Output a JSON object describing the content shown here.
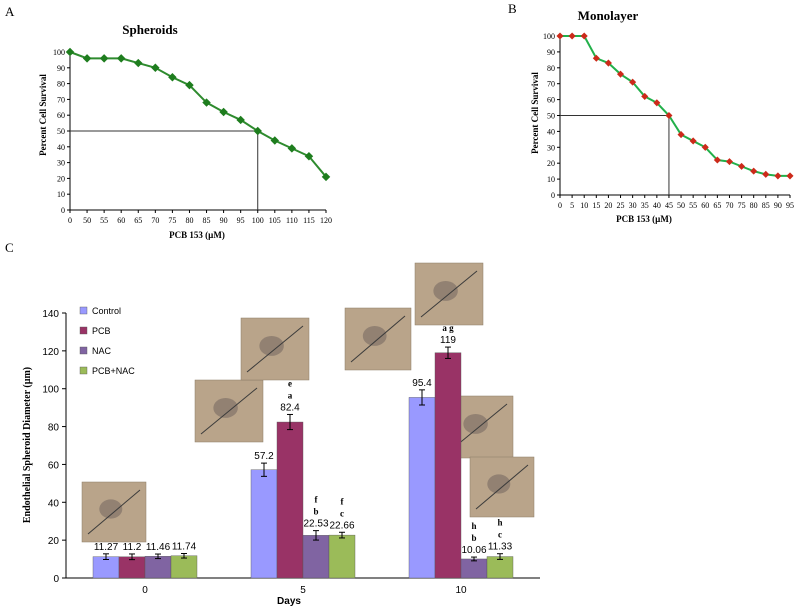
{
  "panels": {
    "a": {
      "label": "A"
    },
    "b": {
      "label": "B"
    },
    "c": {
      "label": "C"
    }
  },
  "chart_data": [
    {
      "id": "A",
      "type": "line",
      "title": "Spheroids",
      "xlabel": "PCB 153 (µM)",
      "ylabel": "Percent Cell Survival",
      "x_ticks": [
        0,
        50,
        55,
        60,
        65,
        70,
        75,
        80,
        85,
        90,
        95,
        100,
        105,
        110,
        115,
        120
      ],
      "y_ticks": [
        0,
        10,
        20,
        30,
        40,
        50,
        60,
        70,
        80,
        90,
        100
      ],
      "ylim": [
        0,
        100
      ],
      "grid": false,
      "marker_color": "#1e7d1e",
      "line_color": "#2e8b2e",
      "series": [
        {
          "values": [
            100,
            96,
            96,
            96,
            93,
            90,
            84,
            79,
            68,
            62,
            57,
            50,
            44,
            39,
            34,
            21
          ]
        }
      ],
      "ic50_guide": {
        "x": 100,
        "y": 50
      }
    },
    {
      "id": "B",
      "type": "line",
      "title": "Monolayer",
      "xlabel": "PCB 153 (µM)",
      "ylabel": "Percent Cell Survival",
      "x": [
        0,
        5,
        10,
        15,
        20,
        25,
        30,
        35,
        40,
        45,
        50,
        55,
        60,
        65,
        70,
        75,
        80,
        85,
        90,
        95
      ],
      "y_ticks": [
        0,
        10,
        20,
        30,
        40,
        50,
        60,
        70,
        80,
        90,
        100
      ],
      "ylim": [
        0,
        100
      ],
      "xlim": [
        0,
        95
      ],
      "grid": false,
      "marker_color": "#cc2a1a",
      "line_color": "#22b04a",
      "series": [
        {
          "values": [
            100,
            100,
            100,
            86,
            83,
            76,
            71,
            62,
            58,
            50,
            38,
            34,
            30,
            22,
            21,
            18,
            15,
            13,
            12,
            12
          ]
        }
      ],
      "ic50_guide": {
        "x": 45,
        "y": 50
      }
    },
    {
      "id": "C",
      "type": "bar",
      "xlabel": "Days",
      "ylabel": "Endothelial Spheroid Diameter (µm)",
      "categories": [
        "0",
        "5",
        "10"
      ],
      "ylim": [
        0,
        140
      ],
      "y_ticks": [
        0,
        20,
        40,
        60,
        80,
        100,
        120,
        140
      ],
      "grid": false,
      "legend_position": "top-left",
      "series": [
        {
          "name": "Control",
          "color": "#9999ff",
          "values": [
            11.27,
            57.2,
            95.4
          ],
          "labels": [
            "11.27",
            "57.2",
            "95.4"
          ],
          "errors": [
            1.5,
            3.5,
            4
          ],
          "letters": [
            "",
            "",
            ""
          ]
        },
        {
          "name": "PCB",
          "color": "#993366",
          "values": [
            11.2,
            82.4,
            119
          ],
          "labels": [
            "11.2",
            "82.4",
            "119"
          ],
          "errors": [
            1.5,
            4,
            3
          ],
          "letters": [
            "",
            "e\na",
            "a g"
          ]
        },
        {
          "name": "NAC",
          "color": "#8064a2",
          "values": [
            11.46,
            22.53,
            10.06
          ],
          "labels": [
            "11.46",
            "22.53",
            "10.06"
          ],
          "errors": [
            1.2,
            2.5,
            1
          ],
          "letters": [
            "",
            "f\nb",
            "h\nb"
          ]
        },
        {
          "name": "PCB+NAC",
          "color": "#9bbb59",
          "values": [
            11.74,
            22.66,
            11.33
          ],
          "labels": [
            "11.74",
            "22.66",
            "11.33"
          ],
          "errors": [
            1.2,
            1.5,
            1.5
          ],
          "letters": [
            "",
            "f\nc",
            "h\nc"
          ]
        }
      ]
    }
  ]
}
